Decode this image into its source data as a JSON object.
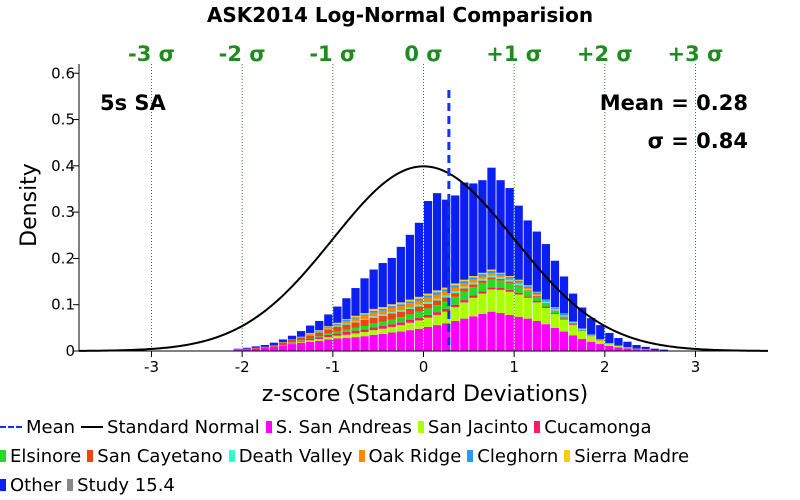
{
  "chart_data": {
    "type": "bar",
    "title": "ASK2014 Log-Normal Comparision",
    "xlabel": "z-score (Standard Deviations)",
    "ylabel": "Density",
    "xlim": [
      -3.8,
      3.8
    ],
    "ylim": [
      0,
      0.62
    ],
    "x_ticks": [
      "-3",
      "-2",
      "-1",
      "0",
      "1",
      "2",
      "3"
    ],
    "y_ticks": [
      "0",
      "0.1",
      "0.2",
      "0.3",
      "0.4",
      "0.5",
      "0.6"
    ],
    "sigma_labels": [
      "-3 σ",
      "-2 σ",
      "-1 σ",
      "0 σ",
      "+1 σ",
      "+2 σ",
      "+3 σ"
    ],
    "sigma_line_positions": [
      -3,
      -2,
      -1,
      0,
      1,
      2,
      3
    ],
    "period_label": "5s SA",
    "mean_label": "Mean = 0.28",
    "sigma_label": "σ = 0.84",
    "mean_value": 0.28,
    "bin_width": 0.1,
    "stack_order": [
      "S. San Andreas",
      "San Jacinto",
      "Cucamonga",
      "Elsinore",
      "San Cayetano",
      "Death Valley",
      "Oak Ridge",
      "Cleghorn",
      "Sierra Madre",
      "Other",
      "Study 15.4"
    ],
    "bins_x": [
      -2.05,
      -1.95,
      -1.85,
      -1.75,
      -1.65,
      -1.55,
      -1.45,
      -1.35,
      -1.25,
      -1.15,
      -1.05,
      -0.95,
      -0.85,
      -0.75,
      -0.65,
      -0.55,
      -0.45,
      -0.35,
      -0.25,
      -0.15,
      -0.05,
      0.05,
      0.15,
      0.25,
      0.35,
      0.45,
      0.55,
      0.65,
      0.75,
      0.85,
      0.95,
      1.05,
      1.15,
      1.25,
      1.35,
      1.45,
      1.55,
      1.65,
      1.75,
      1.85,
      1.95,
      2.05,
      2.15,
      2.25,
      2.35,
      2.45,
      2.55,
      2.65
    ],
    "series": [
      {
        "name": "S. San Andreas",
        "color": "#ff00ff",
        "values": [
          0.003,
          0.004,
          0.005,
          0.007,
          0.009,
          0.012,
          0.015,
          0.018,
          0.02,
          0.022,
          0.025,
          0.027,
          0.028,
          0.03,
          0.032,
          0.035,
          0.037,
          0.04,
          0.042,
          0.045,
          0.048,
          0.052,
          0.056,
          0.06,
          0.065,
          0.07,
          0.075,
          0.08,
          0.085,
          0.082,
          0.078,
          0.074,
          0.07,
          0.065,
          0.058,
          0.05,
          0.042,
          0.034,
          0.026,
          0.02,
          0.015,
          0.011,
          0.008,
          0.006,
          0.004,
          0.003,
          0.002,
          0.001
        ]
      },
      {
        "name": "San Jacinto",
        "color": "#aaff00",
        "values": [
          0,
          0,
          0,
          0,
          0,
          0.001,
          0.001,
          0.002,
          0.003,
          0.004,
          0.005,
          0.006,
          0.007,
          0.008,
          0.009,
          0.01,
          0.011,
          0.012,
          0.014,
          0.016,
          0.018,
          0.02,
          0.022,
          0.025,
          0.03,
          0.035,
          0.04,
          0.044,
          0.048,
          0.05,
          0.05,
          0.048,
          0.045,
          0.04,
          0.035,
          0.03,
          0.026,
          0.022,
          0.017,
          0.012,
          0.008,
          0.005,
          0.003,
          0.002,
          0.001,
          0.001,
          0,
          0
        ]
      },
      {
        "name": "Cucamonga",
        "color": "#ff1a60",
        "values": [
          0,
          0,
          0,
          0,
          0.001,
          0.001,
          0.002,
          0.002,
          0.003,
          0.004,
          0.005,
          0.005,
          0.006,
          0.006,
          0.006,
          0.006,
          0.006,
          0.006,
          0.006,
          0.006,
          0.006,
          0.006,
          0.006,
          0.006,
          0.005,
          0.005,
          0.005,
          0.005,
          0.004,
          0.004,
          0.004,
          0.004,
          0.003,
          0.003,
          0.003,
          0.002,
          0.002,
          0.002,
          0.001,
          0.001,
          0.001,
          0,
          0,
          0,
          0,
          0,
          0,
          0
        ]
      },
      {
        "name": "Elsinore",
        "color": "#22dd22",
        "values": [
          0,
          0,
          0,
          0,
          0,
          0,
          0.001,
          0.001,
          0.001,
          0.002,
          0.003,
          0.004,
          0.005,
          0.006,
          0.007,
          0.008,
          0.009,
          0.01,
          0.011,
          0.012,
          0.013,
          0.014,
          0.015,
          0.016,
          0.017,
          0.018,
          0.018,
          0.018,
          0.017,
          0.016,
          0.015,
          0.013,
          0.011,
          0.009,
          0.007,
          0.005,
          0.004,
          0.003,
          0.002,
          0.001,
          0.001,
          0,
          0,
          0,
          0,
          0,
          0,
          0
        ]
      },
      {
        "name": "San Cayetano",
        "color": "#ee4411",
        "values": [
          0.001,
          0.001,
          0.002,
          0.002,
          0.003,
          0.004,
          0.005,
          0.006,
          0.007,
          0.008,
          0.009,
          0.01,
          0.011,
          0.012,
          0.013,
          0.013,
          0.013,
          0.013,
          0.012,
          0.012,
          0.011,
          0.01,
          0.01,
          0.009,
          0.008,
          0.007,
          0.006,
          0.005,
          0.005,
          0.004,
          0.003,
          0.003,
          0.002,
          0.002,
          0.001,
          0.001,
          0.001,
          0,
          0,
          0,
          0,
          0,
          0,
          0,
          0,
          0,
          0,
          0
        ]
      },
      {
        "name": "Death Valley",
        "color": "#33ffcc",
        "values": [
          0,
          0,
          0,
          0,
          0,
          0,
          0,
          0,
          0.001,
          0.001,
          0.001,
          0.001,
          0.002,
          0.002,
          0.002,
          0.003,
          0.003,
          0.003,
          0.003,
          0.003,
          0.004,
          0.004,
          0.004,
          0.004,
          0.004,
          0.004,
          0.004,
          0.004,
          0.004,
          0.003,
          0.003,
          0.003,
          0.003,
          0.002,
          0.002,
          0.002,
          0.001,
          0.001,
          0.001,
          0,
          0,
          0,
          0,
          0,
          0,
          0,
          0,
          0
        ]
      },
      {
        "name": "Oak Ridge",
        "color": "#ff8800",
        "values": [
          0,
          0,
          0,
          0,
          0,
          0.001,
          0.001,
          0.001,
          0.002,
          0.002,
          0.003,
          0.004,
          0.005,
          0.006,
          0.007,
          0.008,
          0.008,
          0.009,
          0.009,
          0.009,
          0.009,
          0.009,
          0.009,
          0.008,
          0.008,
          0.007,
          0.006,
          0.005,
          0.005,
          0.004,
          0.003,
          0.003,
          0.002,
          0.002,
          0.001,
          0.001,
          0.001,
          0,
          0,
          0,
          0,
          0,
          0,
          0,
          0,
          0,
          0,
          0
        ]
      },
      {
        "name": "Cleghorn",
        "color": "#2299ff",
        "values": [
          0,
          0,
          0,
          0,
          0,
          0,
          0,
          0.001,
          0.001,
          0.001,
          0.002,
          0.002,
          0.003,
          0.003,
          0.003,
          0.004,
          0.004,
          0.004,
          0.004,
          0.004,
          0.004,
          0.005,
          0.005,
          0.005,
          0.005,
          0.005,
          0.005,
          0.005,
          0.005,
          0.004,
          0.004,
          0.004,
          0.004,
          0.004,
          0.003,
          0.003,
          0.003,
          0.002,
          0.002,
          0.002,
          0.001,
          0.001,
          0.001,
          0,
          0,
          0,
          0,
          0
        ]
      },
      {
        "name": "Sierra Madre",
        "color": "#ffcc11",
        "values": [
          0,
          0,
          0,
          0,
          0,
          0,
          0,
          0,
          0.001,
          0.001,
          0.001,
          0.002,
          0.002,
          0.003,
          0.003,
          0.004,
          0.004,
          0.004,
          0.004,
          0.004,
          0.004,
          0.004,
          0.004,
          0.004,
          0.004,
          0.003,
          0.003,
          0.003,
          0.003,
          0.002,
          0.002,
          0.002,
          0.002,
          0.001,
          0.001,
          0.001,
          0.001,
          0,
          0,
          0,
          0,
          0,
          0,
          0,
          0,
          0,
          0,
          0
        ]
      },
      {
        "name": "Other",
        "color": "#0a1ff0",
        "values": [
          0.001,
          0.002,
          0.003,
          0.004,
          0.005,
          0.006,
          0.008,
          0.012,
          0.016,
          0.02,
          0.025,
          0.035,
          0.045,
          0.06,
          0.075,
          0.085,
          0.095,
          0.1,
          0.12,
          0.14,
          0.16,
          0.2,
          0.21,
          0.19,
          0.19,
          0.21,
          0.2,
          0.2,
          0.22,
          0.2,
          0.19,
          0.16,
          0.14,
          0.13,
          0.12,
          0.1,
          0.08,
          0.06,
          0.045,
          0.035,
          0.03,
          0.022,
          0.016,
          0.012,
          0.008,
          0.005,
          0.003,
          0.002
        ]
      },
      {
        "name": "Study 15.4",
        "color": "#888888",
        "values": []
      }
    ],
    "curves": [
      {
        "name": "Standard Normal",
        "color": "#000000",
        "mean": 0,
        "sd": 1
      }
    ],
    "legend": {
      "placement": "bottom",
      "items": [
        {
          "label": "Mean",
          "color": "#1133ee",
          "kind": "dashed-line"
        },
        {
          "label": "Standard Normal",
          "color": "#000000",
          "kind": "line"
        },
        {
          "label": "S. San Andreas",
          "color": "#ff00ff",
          "kind": "square"
        },
        {
          "label": "San Jacinto",
          "color": "#aaff00",
          "kind": "square"
        },
        {
          "label": "Cucamonga",
          "color": "#ff1a60",
          "kind": "square"
        },
        {
          "label": "Elsinore",
          "color": "#22dd22",
          "kind": "square"
        },
        {
          "label": "San Cayetano",
          "color": "#ee4411",
          "kind": "square"
        },
        {
          "label": "Death Valley",
          "color": "#33ffcc",
          "kind": "square"
        },
        {
          "label": "Oak Ridge",
          "color": "#ff8800",
          "kind": "square"
        },
        {
          "label": "Cleghorn",
          "color": "#2299ff",
          "kind": "square"
        },
        {
          "label": "Sierra Madre",
          "color": "#ffcc11",
          "kind": "square"
        },
        {
          "label": "Other",
          "color": "#0a1ff0",
          "kind": "square"
        },
        {
          "label": "Study 15.4",
          "color": "#888888",
          "kind": "square"
        }
      ]
    },
    "colors": {
      "sigma_text": "#1e8c1e",
      "sigma_lines": "#2a8a2a",
      "mean_line": "#1133ee"
    },
    "grid": false
  }
}
